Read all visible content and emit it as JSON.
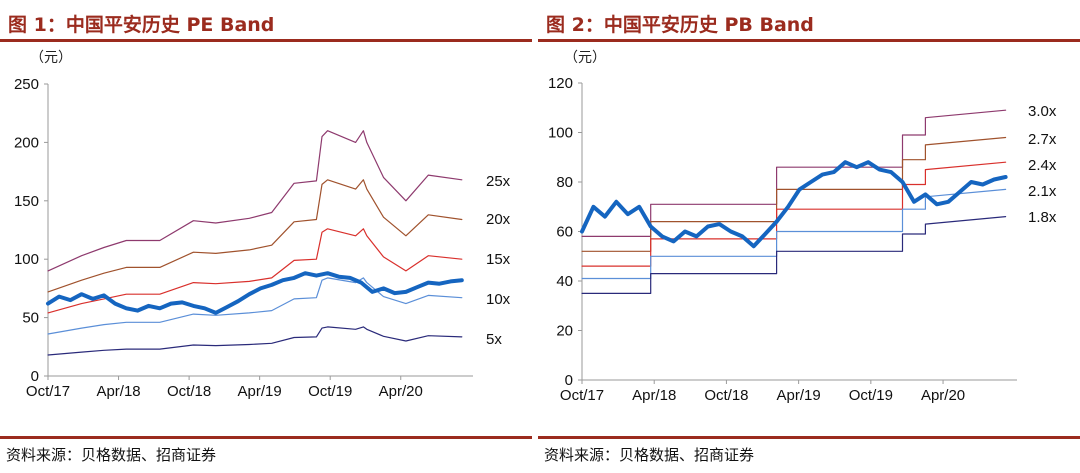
{
  "colors": {
    "title": "#9b2b1e",
    "rule": "#9b2b1e",
    "price": "#1565c0",
    "band_top": "#8e3a6e",
    "band_2": "#a0522d",
    "band_3": "#d9302c",
    "band_4": "#5b8fd8",
    "band_5": "#2a2a7a"
  },
  "source_label": "资料来源：贝格数据、招商证券",
  "chart_data": [
    {
      "type": "line",
      "title": "图 1：中国平安历史 PE Band",
      "unit_label": "（元）",
      "categories": [
        "Oct/17",
        "Apr/18",
        "Oct/18",
        "Apr/19",
        "Oct/19",
        "Apr/20"
      ],
      "x_range": [
        0,
        38
      ],
      "ylim": [
        0,
        250
      ],
      "yticks": [
        0,
        50,
        100,
        150,
        200,
        250
      ],
      "series": [
        {
          "name": "25x",
          "x": [
            0,
            3,
            5,
            7,
            10,
            13,
            15,
            18,
            20,
            22,
            24,
            24.5,
            25,
            27.5,
            28.2,
            28.5,
            30,
            32,
            34,
            37
          ],
          "values": [
            90,
            103,
            110,
            116,
            116,
            133,
            131,
            135,
            140,
            165,
            167,
            205,
            210,
            200,
            210,
            200,
            170,
            150,
            172,
            168
          ]
        },
        {
          "name": "20x",
          "x": [
            0,
            3,
            5,
            7,
            10,
            13,
            15,
            18,
            20,
            22,
            24,
            24.5,
            25,
            27.5,
            28.2,
            28.5,
            30,
            32,
            34,
            37
          ],
          "values": [
            72,
            82,
            88,
            93,
            93,
            106,
            105,
            108,
            112,
            132,
            134,
            164,
            168,
            160,
            168,
            160,
            136,
            120,
            138,
            134
          ]
        },
        {
          "name": "15x",
          "x": [
            0,
            3,
            5,
            7,
            10,
            13,
            15,
            18,
            20,
            22,
            24,
            24.5,
            25,
            27.5,
            28.2,
            28.5,
            30,
            32,
            34,
            37
          ],
          "values": [
            54,
            62,
            66,
            70,
            70,
            80,
            79,
            81,
            84,
            99,
            100,
            123,
            126,
            120,
            126,
            120,
            102,
            90,
            103,
            100
          ]
        },
        {
          "name": "10x",
          "x": [
            0,
            3,
            5,
            7,
            10,
            13,
            15,
            18,
            20,
            22,
            24,
            24.5,
            25,
            27.5,
            28.2,
            28.5,
            30,
            32,
            34,
            37
          ],
          "values": [
            36,
            41,
            44,
            46,
            46,
            53,
            52,
            54,
            56,
            66,
            67,
            82,
            84,
            80,
            84,
            80,
            68,
            62,
            69,
            67
          ]
        },
        {
          "name": "5x",
          "x": [
            0,
            3,
            5,
            7,
            10,
            13,
            15,
            18,
            20,
            22,
            24,
            24.5,
            25,
            27.5,
            28.2,
            28.5,
            30,
            32,
            34,
            37
          ],
          "values": [
            18,
            20.5,
            22,
            23,
            23,
            26.5,
            26,
            27,
            28,
            33,
            33.5,
            41,
            42,
            40,
            42,
            40,
            34,
            30,
            34.5,
            33.5
          ]
        },
        {
          "name": "股价",
          "x": [
            0,
            1,
            2,
            3,
            4,
            5,
            6,
            7,
            8,
            9,
            10,
            11,
            12,
            13,
            14,
            15,
            16,
            17,
            18,
            19,
            20,
            21,
            22,
            23,
            24,
            25,
            26,
            27,
            28,
            29,
            30,
            31,
            32,
            33,
            34,
            35,
            36,
            37
          ],
          "values": [
            62,
            68,
            65,
            70,
            66,
            69,
            62,
            58,
            56,
            60,
            58,
            62,
            63,
            60,
            58,
            54,
            59,
            64,
            70,
            75,
            78,
            82,
            84,
            88,
            86,
            88,
            85,
            84,
            80,
            72,
            75,
            71,
            72,
            76,
            80,
            79,
            81,
            82
          ]
        }
      ],
      "band_labels": [
        "25x",
        "20x",
        "15x",
        "10x",
        "5x"
      ]
    },
    {
      "type": "line",
      "title": "图 2：中国平安历史 PB Band",
      "unit_label": "（元）",
      "categories": [
        "Oct/17",
        "Apr/18",
        "Oct/18",
        "Apr/19",
        "Oct/19",
        "Apr/20"
      ],
      "x_range": [
        0,
        38
      ],
      "ylim": [
        0,
        120
      ],
      "yticks": [
        0,
        20,
        40,
        60,
        80,
        100,
        120
      ],
      "series": [
        {
          "name": "3.0x",
          "x": [
            0,
            6,
            6,
            17,
            17,
            28,
            28,
            30,
            30,
            37
          ],
          "values": [
            58,
            58,
            71,
            71,
            86,
            86,
            99,
            99,
            106,
            109
          ]
        },
        {
          "name": "2.7x",
          "x": [
            0,
            6,
            6,
            17,
            17,
            28,
            28,
            30,
            30,
            37
          ],
          "values": [
            52,
            52,
            64,
            64,
            77,
            77,
            89,
            89,
            95,
            98
          ]
        },
        {
          "name": "2.4x",
          "x": [
            0,
            6,
            6,
            17,
            17,
            28,
            28,
            30,
            30,
            37
          ],
          "values": [
            46,
            46,
            57,
            57,
            69,
            69,
            79,
            79,
            85,
            88
          ]
        },
        {
          "name": "2.1x",
          "x": [
            0,
            6,
            6,
            17,
            17,
            28,
            28,
            30,
            30,
            37
          ],
          "values": [
            41,
            41,
            50,
            50,
            60,
            60,
            69,
            69,
            74,
            77
          ]
        },
        {
          "name": "1.8x",
          "x": [
            0,
            6,
            6,
            17,
            17,
            28,
            28,
            30,
            30,
            37
          ],
          "values": [
            35,
            35,
            43,
            43,
            52,
            52,
            59,
            59,
            63,
            66
          ]
        },
        {
          "name": "股价",
          "x": [
            0,
            1,
            2,
            3,
            4,
            5,
            6,
            7,
            8,
            9,
            10,
            11,
            12,
            13,
            14,
            15,
            16,
            17,
            18,
            19,
            20,
            21,
            22,
            23,
            24,
            25,
            26,
            27,
            28,
            29,
            30,
            31,
            32,
            33,
            34,
            35,
            36,
            37
          ],
          "values": [
            60,
            70,
            66,
            72,
            67,
            70,
            62,
            58,
            56,
            60,
            58,
            62,
            63,
            60,
            58,
            54,
            59,
            64,
            70,
            77,
            80,
            83,
            84,
            88,
            86,
            88,
            85,
            84,
            80,
            72,
            75,
            71,
            72,
            76,
            80,
            79,
            81,
            82
          ]
        }
      ],
      "band_labels": [
        "3.0x",
        "2.7x",
        "2.4x",
        "2.1x",
        "1.8x"
      ]
    }
  ]
}
